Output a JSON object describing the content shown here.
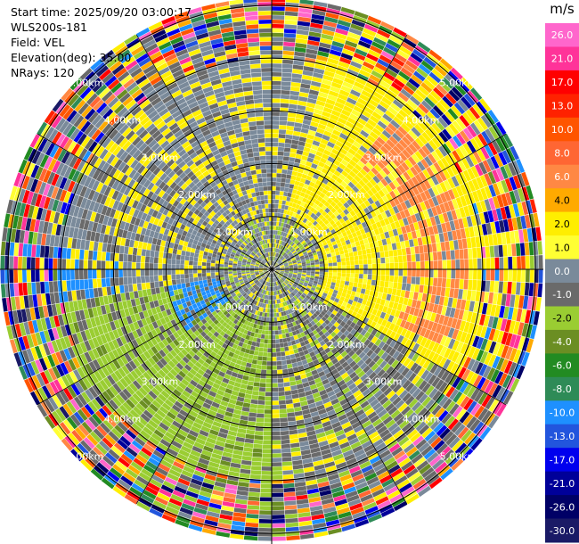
{
  "header": {
    "start_time": "Start time: 2025/09/20 03:00:17",
    "instrument": "WLS200s-181",
    "field": "Field: VEL",
    "elevation": "Elevation(deg): 35.00",
    "nrays": "NRays: 120"
  },
  "chart_data": {
    "type": "heatmap",
    "projection": "polar PPI",
    "n_rays": 120,
    "elevation_deg": 35.0,
    "range_rings_km": [
      1.0,
      2.0,
      3.0,
      4.0,
      5.0
    ],
    "ring_labels": [
      "1.00km",
      "2.00km",
      "3.00km",
      "4.00km",
      "5.00km"
    ],
    "grid": true,
    "spokes_deg": [
      0,
      30,
      60,
      90,
      120,
      150,
      180,
      210,
      240,
      270,
      300,
      330
    ],
    "colorbar": {
      "unit": "m/s",
      "placement": "right",
      "ticks": [
        "26.0",
        "21.0",
        "17.0",
        "13.0",
        "10.0",
        "8.0",
        "6.0",
        "4.0",
        "2.0",
        "1.0",
        "0.0",
        "-1.0",
        "-2.0",
        "-4.0",
        "-6.0",
        "-8.0",
        "-10.0",
        "-13.0",
        "-17.0",
        "-21.0",
        "-26.0",
        "-30.0"
      ],
      "colors": [
        "#ff66cc",
        "#ff3399",
        "#ff0000",
        "#ff2200",
        "#ff5500",
        "#ff6633",
        "#ff8844",
        "#ffaa00",
        "#ffee00",
        "#ffff33",
        "#7a8a9a",
        "#6a6a6a",
        "#9acd32",
        "#6b8e23",
        "#228b22",
        "#2e8b57",
        "#1e90ff",
        "#2255dd",
        "#0000ee",
        "#000099",
        "#000066",
        "#1a1a66"
      ]
    },
    "velocity_structure": {
      "inner_range_km": 1.0,
      "outer_clean_range_km": 4.0,
      "positive_sector_deg": [
        15,
        120
      ],
      "negative_sector_deg": [
        180,
        260
      ],
      "outer_noise": true
    }
  }
}
